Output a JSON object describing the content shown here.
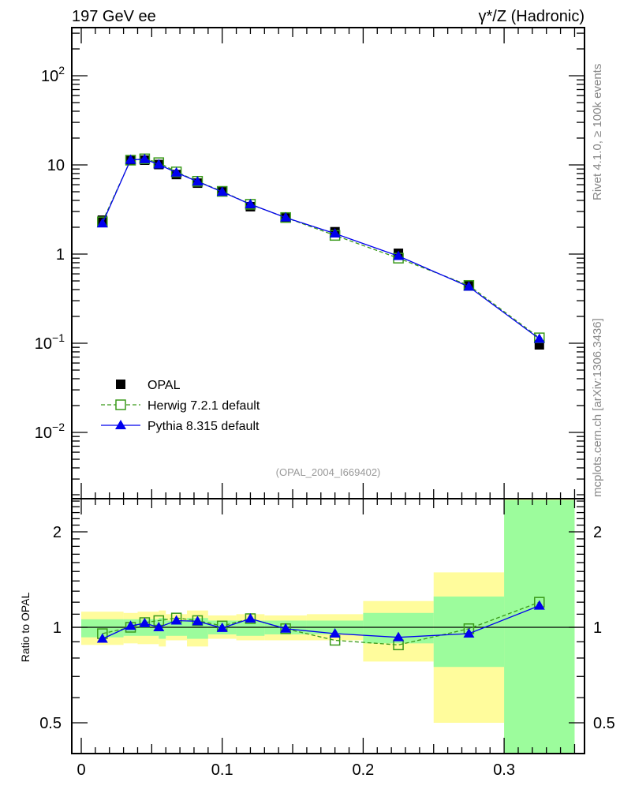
{
  "header": {
    "left": "197 GeV ee",
    "right": "γ*/Z (Hadronic)"
  },
  "side_text": {
    "rivet": "Rivet 4.1.0, ≥ 100k events",
    "mcplots": "mcplots.cern.ch [arXiv:1306.3436]"
  },
  "analysis_label": "(OPAL_2004_I669402)",
  "colors": {
    "data": "#000000",
    "herwig": "#3a9a1a",
    "pythia": "#0000ee",
    "band_stat": "#9cfc9c",
    "band_total": "#fffc9c"
  },
  "chart_data": [
    {
      "type": "line",
      "panel": "main",
      "yscale": "log",
      "ylim": [
        0.0018,
        350
      ],
      "xlim": [
        -0.007,
        0.357
      ],
      "ytick_labels": [
        {
          "value": 100,
          "label": "10",
          "exp": "2"
        },
        {
          "value": 10,
          "label": "10",
          "exp": ""
        },
        {
          "value": 1,
          "label": "1",
          "exp": ""
        },
        {
          "value": 0.1,
          "label": "10",
          "exp": "−1"
        },
        {
          "value": 0.01,
          "label": "10",
          "exp": "−2"
        }
      ],
      "x": [
        0.015,
        0.035,
        0.045,
        0.055,
        0.0675,
        0.0825,
        0.1,
        0.12,
        0.145,
        0.18,
        0.225,
        0.275,
        0.325
      ],
      "series": [
        {
          "name": "OPAL",
          "marker": "filled-square",
          "values": [
            2.4,
            11.3,
            11.3,
            10.1,
            7.8,
            6.25,
            5.0,
            3.4,
            2.6,
            1.78,
            1.02,
            0.45,
            0.096
          ]
        },
        {
          "name": "Herwig 7.2.1 default",
          "marker": "open-square",
          "dashed": true,
          "values": [
            2.3,
            11.3,
            11.7,
            10.6,
            8.35,
            6.55,
            5.05,
            3.62,
            2.57,
            1.62,
            0.9,
            0.445,
            0.115
          ]
        },
        {
          "name": "Pythia 8.315 default",
          "marker": "triangle",
          "dashed": false,
          "values": [
            2.2,
            11.4,
            11.6,
            10.1,
            8.2,
            6.5,
            4.98,
            3.62,
            2.57,
            1.7,
            0.95,
            0.43,
            0.112
          ]
        }
      ],
      "legend_placement": "bottom-left"
    },
    {
      "type": "line",
      "panel": "ratio",
      "yscale": "log",
      "ylabel": "Ratio to OPAL",
      "ylim": [
        0.4,
        2.54
      ],
      "ytick_labels": [
        {
          "value": 2,
          "label": "2"
        },
        {
          "value": 1,
          "label": "1"
        },
        {
          "value": 0.5,
          "label": "0.5"
        }
      ],
      "xtick_labels": [
        {
          "value": 0,
          "label": "0"
        },
        {
          "value": 0.1,
          "label": "0.1"
        },
        {
          "value": 0.2,
          "label": "0.2"
        },
        {
          "value": 0.3,
          "label": "0.3"
        }
      ],
      "bin_edges": [
        0,
        0.03,
        0.04,
        0.055,
        0.06,
        0.075,
        0.09,
        0.11,
        0.13,
        0.16,
        0.2,
        0.25,
        0.3,
        0.35
      ],
      "band_total": [
        [
          0.88,
          1.12
        ],
        [
          0.89,
          1.11
        ],
        [
          0.885,
          1.12
        ],
        [
          0.87,
          1.13
        ],
        [
          0.91,
          1.1
        ],
        [
          0.87,
          1.13
        ],
        [
          0.92,
          1.09
        ],
        [
          0.91,
          1.1
        ],
        [
          0.91,
          1.09
        ],
        [
          0.91,
          1.1
        ],
        [
          0.78,
          1.21
        ],
        [
          0.5,
          1.49
        ],
        [
          0.3,
          3.0
        ]
      ],
      "band_stat": [
        [
          0.93,
          1.06
        ],
        [
          0.94,
          1.06
        ],
        [
          0.94,
          1.06
        ],
        [
          0.92,
          1.07
        ],
        [
          0.94,
          1.05
        ],
        [
          0.92,
          1.07
        ],
        [
          0.95,
          1.05
        ],
        [
          0.94,
          1.05
        ],
        [
          0.95,
          1.05
        ],
        [
          0.95,
          1.05
        ],
        [
          0.89,
          1.11
        ],
        [
          0.75,
          1.25
        ],
        [
          0.3,
          2.52
        ]
      ],
      "x": [
        0.015,
        0.035,
        0.045,
        0.055,
        0.0675,
        0.0825,
        0.1,
        0.12,
        0.145,
        0.18,
        0.225,
        0.275,
        0.325
      ],
      "series": [
        {
          "name": "Herwig 7.2.1 default",
          "values": [
            0.955,
            1.0,
            1.035,
            1.05,
            1.07,
            1.05,
            1.01,
            1.065,
            0.99,
            0.91,
            0.88,
            0.99,
            1.2
          ]
        },
        {
          "name": "Pythia 8.315 default",
          "values": [
            0.92,
            1.01,
            1.03,
            1.0,
            1.05,
            1.045,
            0.995,
            1.065,
            0.99,
            0.955,
            0.93,
            0.955,
            1.17
          ]
        }
      ]
    }
  ]
}
